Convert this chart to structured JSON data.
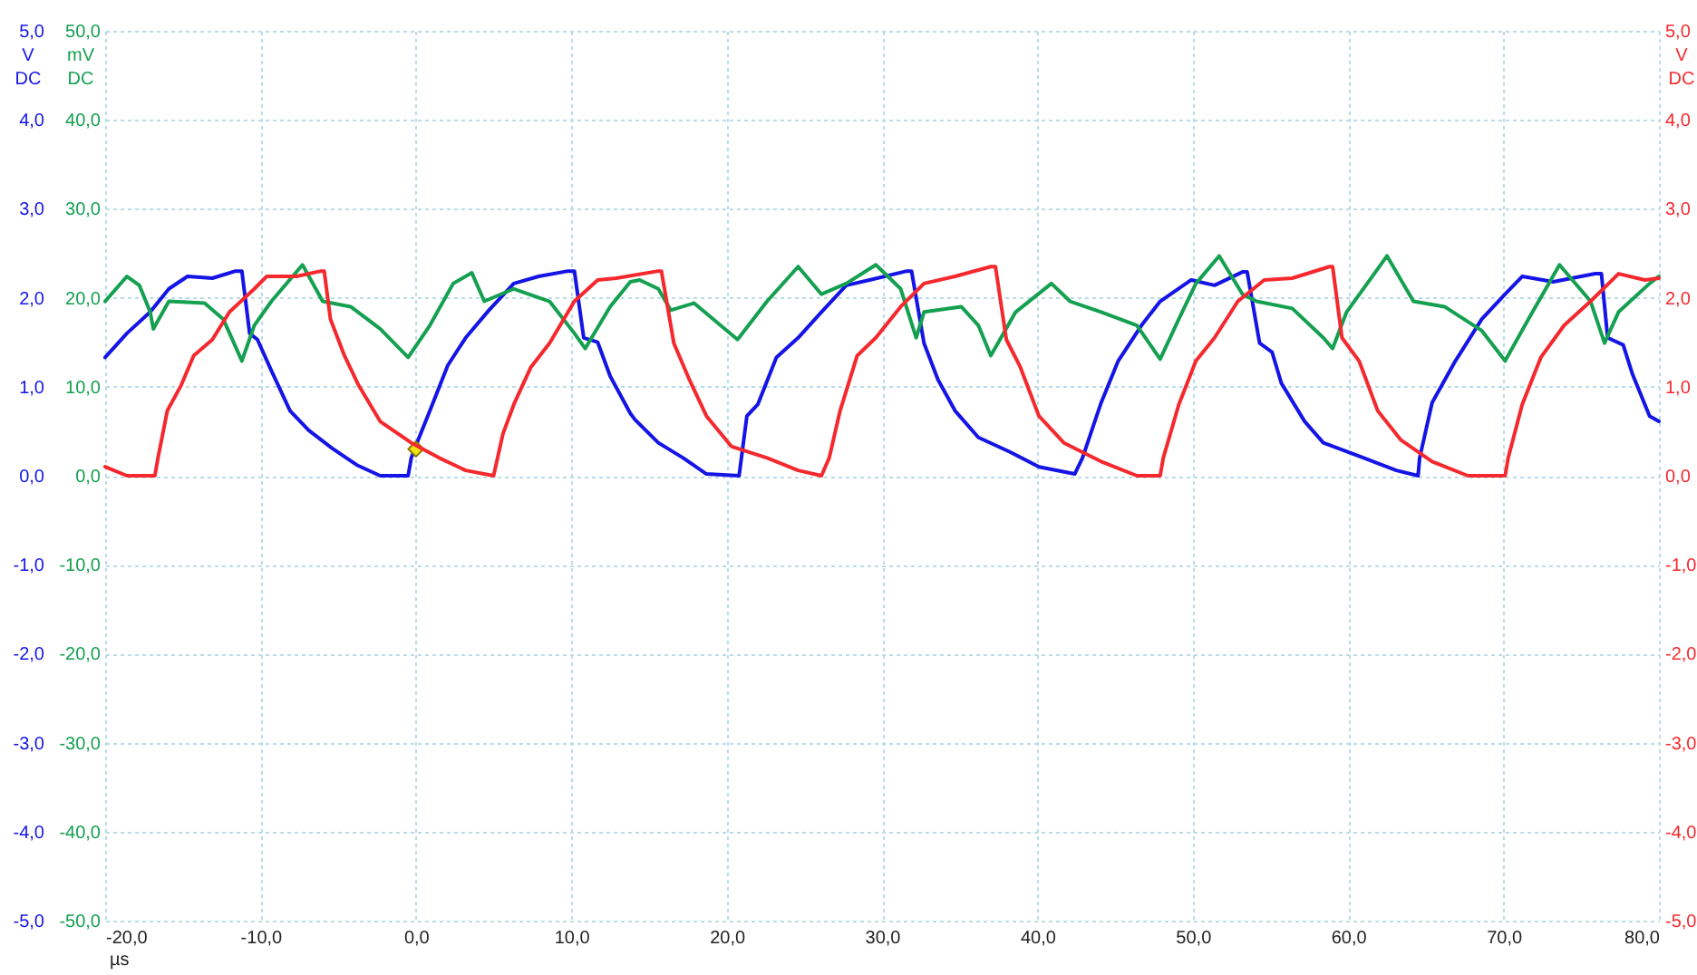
{
  "chart_data": {
    "type": "line",
    "xlabel": "µs",
    "ylabel": "mV DC",
    "y2label": "V DC",
    "y3label": "V DC",
    "grid": true,
    "marker": "none",
    "line_style": "solid",
    "xlim": [
      -20,
      80
    ],
    "xticks": [
      {
        "value": -20,
        "label": "-20,0"
      },
      {
        "value": -10,
        "label": "-10,0"
      },
      {
        "value": 0,
        "label": "0,0"
      },
      {
        "value": 10,
        "label": "10,0"
      },
      {
        "value": 20,
        "label": "20,0"
      },
      {
        "value": 30,
        "label": "30,0"
      },
      {
        "value": 40,
        "label": "40,0"
      },
      {
        "value": 50,
        "label": "50,0"
      },
      {
        "value": 60,
        "label": "60,0"
      },
      {
        "value": 70,
        "label": "70,0"
      },
      {
        "value": 80,
        "label": "80,0"
      }
    ],
    "y3lim": [
      -5,
      5
    ],
    "y3ticks": [
      {
        "value": -5,
        "label": "-5,0"
      },
      {
        "value": -4,
        "label": "-4,0"
      },
      {
        "value": -3,
        "label": "-3,0"
      },
      {
        "value": -2,
        "label": "-2,0"
      },
      {
        "value": -1,
        "label": "-1,0"
      },
      {
        "value": 0,
        "label": "0,0"
      },
      {
        "value": 1,
        "label": "1,0"
      },
      {
        "value": 2,
        "label": "2,0"
      },
      {
        "value": 3,
        "label": "3,0"
      },
      {
        "value": 4,
        "label": "4,0"
      },
      {
        "value": 5,
        "label": "5,0"
      }
    ],
    "ylim": [
      -50,
      50
    ],
    "yticks": [
      {
        "value": -50,
        "label": "-50,0"
      },
      {
        "value": -40,
        "label": "-40,0"
      },
      {
        "value": -30,
        "label": "-30,0"
      },
      {
        "value": -20,
        "label": "-20,0"
      },
      {
        "value": -10,
        "label": "-10,0"
      },
      {
        "value": 0,
        "label": "0,0"
      },
      {
        "value": 10,
        "label": "10,0"
      },
      {
        "value": 20,
        "label": "20,0"
      },
      {
        "value": 30,
        "label": "30,0"
      },
      {
        "value": 40,
        "label": "40,0"
      },
      {
        "value": 50,
        "label": "50,0"
      }
    ],
    "y2lim": [
      -5,
      5
    ],
    "y2ticks": [
      {
        "value": -5,
        "label": "-5,0"
      },
      {
        "value": -4,
        "label": "-4,0"
      },
      {
        "value": -3,
        "label": "-3,0"
      },
      {
        "value": -2,
        "label": "-2,0"
      },
      {
        "value": -1,
        "label": "-1,0"
      },
      {
        "value": 0,
        "label": "0,0"
      },
      {
        "value": 1,
        "label": "1,0"
      },
      {
        "value": 2,
        "label": "2,0"
      },
      {
        "value": 3,
        "label": "3,0"
      },
      {
        "value": 4,
        "label": "4,0"
      },
      {
        "value": 5,
        "label": "5,0"
      }
    ],
    "series": [
      {
        "color": "#1414e6",
        "axis": "y3",
        "x": [
          -20,
          -18.6,
          -17.1,
          -15.9,
          -14.7,
          -13.1,
          -11.6,
          -11.2,
          -10.7,
          -10.2,
          -9.3,
          -8.1,
          -6.9,
          -5.4,
          -3.8,
          -2.3,
          -0.5,
          -0.3,
          0.07,
          0.9,
          2.05,
          3.2,
          4.7,
          6.3,
          7.9,
          9.8,
          10.2,
          10.8,
          11.7,
          12.5,
          13.8,
          14.1,
          15.6,
          17.2,
          18.7,
          20.8,
          21.3,
          22.0,
          23.2,
          24.6,
          26.1,
          27.7,
          29.2,
          31.6,
          31.9,
          32.7,
          33.6,
          34.7,
          36.2,
          38.2,
          40.1,
          42.4,
          42.9,
          44.1,
          45.2,
          46.7,
          47.9,
          49.9,
          51.4,
          53.2,
          53.5,
          54.3,
          55.1,
          55.7,
          57.2,
          58.4,
          60.7,
          63.1,
          64.5,
          64.6,
          65.4,
          66.9,
          68.6,
          70.1,
          71.2,
          73.2,
          75.9,
          76.3,
          76.7,
          77.7,
          78.3,
          79.4,
          80
        ],
        "values": [
          1.33,
          1.6,
          1.84,
          2.1,
          2.24,
          2.22,
          2.3,
          2.3,
          1.6,
          1.53,
          1.18,
          0.73,
          0.51,
          0.31,
          0.12,
          0,
          0,
          0.2,
          0.37,
          0.73,
          1.24,
          1.55,
          1.86,
          2.16,
          2.24,
          2.3,
          2.3,
          1.55,
          1.5,
          1.12,
          0.7,
          0.63,
          0.37,
          0.2,
          0.02,
          0,
          0.67,
          0.8,
          1.33,
          1.55,
          1.84,
          2.14,
          2.2,
          2.3,
          2.3,
          1.49,
          1.08,
          0.73,
          0.43,
          0.27,
          0.1,
          0.02,
          0.2,
          0.82,
          1.29,
          1.69,
          1.96,
          2.2,
          2.14,
          2.29,
          2.29,
          1.49,
          1.39,
          1.04,
          0.61,
          0.37,
          0.22,
          0.06,
          0,
          0.2,
          0.82,
          1.29,
          1.76,
          2.04,
          2.24,
          2.18,
          2.27,
          2.27,
          1.55,
          1.47,
          1.14,
          0.67,
          0.61
        ]
      },
      {
        "color": "#14a050",
        "axis": "y",
        "x": [
          -20,
          -18.6,
          -17.8,
          -17.1,
          -16.9,
          -15.9,
          -13.6,
          -12.4,
          -11.2,
          -10.4,
          -9.3,
          -7.3,
          -6,
          -4.2,
          -2.3,
          -0.5,
          0.9,
          2.4,
          3.6,
          4.4,
          6.3,
          8.6,
          10.2,
          10.9,
          12.5,
          13.8,
          14.4,
          15.6,
          16.4,
          17.9,
          20.7,
          22.6,
          24.6,
          26.1,
          27.7,
          29.6,
          31.2,
          32.2,
          32.7,
          35.1,
          36.2,
          37,
          38.6,
          40.9,
          42.1,
          44.1,
          46.4,
          47.9,
          49.1,
          50.2,
          51.7,
          53.2,
          54.1,
          56.4,
          58.4,
          59,
          59.9,
          62.5,
          64.2,
          66.2,
          68.6,
          70.1,
          71.6,
          73.6,
          75.6,
          76.5,
          77.4,
          79.4,
          80
        ],
        "values": [
          19.6,
          22.4,
          21.4,
          18.4,
          16.5,
          19.6,
          19.4,
          17.6,
          12.9,
          16.9,
          19.6,
          23.7,
          19.6,
          19.0,
          16.5,
          13.3,
          16.9,
          21.6,
          22.8,
          19.6,
          21,
          19.6,
          16,
          14.3,
          19,
          21.8,
          22,
          21,
          18.6,
          19.4,
          15.3,
          19.6,
          23.5,
          20.4,
          21.6,
          23.7,
          21,
          15.5,
          18.4,
          19,
          16.9,
          13.5,
          18.4,
          21.6,
          19.6,
          18.4,
          16.9,
          13.1,
          17.6,
          21.6,
          24.7,
          20.4,
          19.6,
          18.8,
          15.5,
          14.3,
          18.4,
          24.7,
          19.6,
          19,
          16.3,
          12.9,
          17.6,
          23.7,
          19.6,
          14.9,
          18.4,
          21.6,
          22.4
        ]
      },
      {
        "color": "#f5282d",
        "axis": "y2",
        "x": [
          -20,
          -18.6,
          -16.8,
          -16.6,
          -16,
          -15.1,
          -14.3,
          -13.1,
          -12,
          -10.4,
          -9.6,
          -7.7,
          -6.1,
          -5.9,
          -5.5,
          -4.6,
          -3.7,
          -2.3,
          -0.3,
          1.5,
          3.2,
          5.0,
          5.6,
          6.3,
          7.4,
          8.6,
          10.2,
          11.7,
          12.9,
          15.6,
          15.8,
          16.6,
          17.6,
          18.7,
          20.3,
          22.6,
          24.6,
          26.1,
          26.6,
          27.3,
          28.4,
          29.6,
          31.2,
          32.7,
          34.7,
          37.0,
          37.3,
          38,
          38.9,
          40.1,
          41.7,
          44.1,
          46.4,
          47.9,
          48.1,
          49.1,
          50.2,
          51.4,
          52.9,
          54.6,
          56.4,
          58.8,
          59.0,
          59.6,
          60.7,
          61.9,
          63.4,
          65.4,
          67.7,
          70.1,
          70.3,
          71.2,
          72.4,
          73.9,
          75.6,
          77.4,
          79.1,
          80
        ],
        "values": [
          0.1,
          0,
          0,
          0.2,
          0.73,
          1.02,
          1.35,
          1.53,
          1.84,
          2.1,
          2.24,
          2.24,
          2.3,
          2.3,
          1.76,
          1.35,
          1.02,
          0.61,
          0.37,
          0.2,
          0.06,
          0,
          0.47,
          0.8,
          1.22,
          1.49,
          1.96,
          2.2,
          2.22,
          2.3,
          2.3,
          1.49,
          1.08,
          0.67,
          0.33,
          0.2,
          0.06,
          0,
          0.2,
          0.73,
          1.35,
          1.55,
          1.9,
          2.16,
          2.24,
          2.35,
          2.35,
          1.53,
          1.22,
          0.67,
          0.37,
          0.16,
          0,
          0,
          0.2,
          0.8,
          1.29,
          1.55,
          1.96,
          2.2,
          2.22,
          2.35,
          2.35,
          1.55,
          1.29,
          0.73,
          0.4,
          0.16,
          0,
          0,
          0.2,
          0.8,
          1.33,
          1.69,
          1.96,
          2.27,
          2.2,
          2.22
        ]
      },
      {
        "type": "scatter",
        "marker": "diamond",
        "color": "#f0e614",
        "axis": "y3",
        "x": [
          0
        ],
        "values": [
          0.3
        ]
      }
    ]
  }
}
